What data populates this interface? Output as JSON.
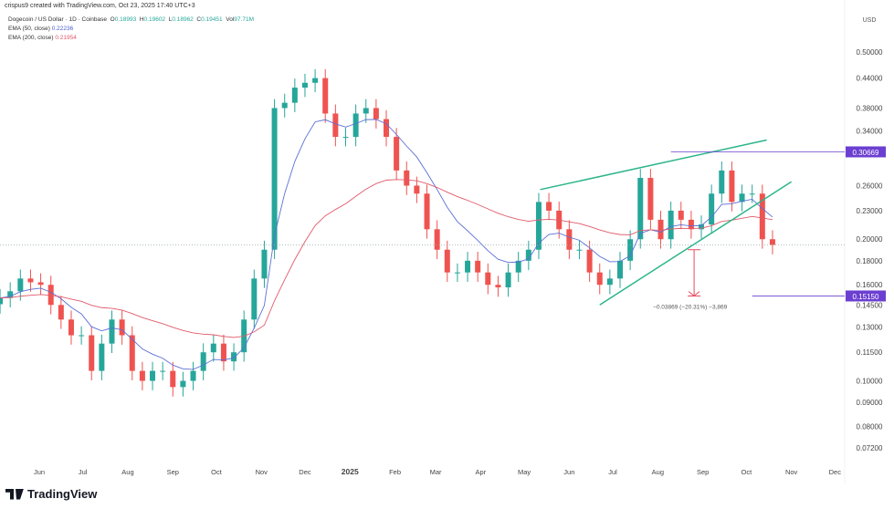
{
  "header": {
    "credit": "crispus9 created with TradingView.com, Oct 23, 2025 17:40 UTC+3",
    "symbol": "Dogecoin / US Dollar · 1D · Coinbase",
    "o_label": "O",
    "o": "0.18993",
    "h_label": "H",
    "h": "0.19602",
    "l_label": "L",
    "l": "0.18962",
    "c_label": "C",
    "c": "0.19451",
    "vol_label": "Vol",
    "vol": "97.71M",
    "ema50_label": "EMA (50, close)",
    "ema50": "0.22236",
    "ema200_label": "EMA (200, close)",
    "ema200": "0.21954"
  },
  "footer": {
    "brand": "TradingView"
  },
  "colors": {
    "up": "#26a69a",
    "down": "#ef5350",
    "ema50": "#5b6fd6",
    "ema200": "#e05a6a",
    "trend": "#2bb58a",
    "marker": "#6b3fd1",
    "arrow": "#e8485e"
  },
  "chart_data": {
    "type": "candlestick",
    "title": "Dogecoin / US Dollar · 1D · Coinbase",
    "yscale": "log",
    "ylabel": "USD",
    "ylim": [
      0.068,
      0.53
    ],
    "y_ticks": [
      "0.50000",
      "0.44000",
      "0.38000",
      "0.34000",
      "0.26000",
      "0.23000",
      "0.20000",
      "0.18000",
      "0.16000",
      "0.14500",
      "0.13000",
      "0.11500",
      "0.10000",
      "0.09000",
      "0.08000",
      "0.07200"
    ],
    "x_ticks": [
      {
        "label": "Jun",
        "date": "2024-06-01"
      },
      {
        "label": "Jul",
        "date": "2024-07-01"
      },
      {
        "label": "Aug",
        "date": "2024-08-01"
      },
      {
        "label": "Sep",
        "date": "2024-09-01"
      },
      {
        "label": "Oct",
        "date": "2024-10-01"
      },
      {
        "label": "Nov",
        "date": "2024-11-01"
      },
      {
        "label": "Dec",
        "date": "2024-12-01"
      },
      {
        "label": "2025",
        "date": "2025-01-01"
      },
      {
        "label": "Feb",
        "date": "2025-02-01"
      },
      {
        "label": "Mar",
        "date": "2025-03-01"
      },
      {
        "label": "Apr",
        "date": "2025-04-01"
      },
      {
        "label": "May",
        "date": "2025-05-01"
      },
      {
        "label": "Jun",
        "date": "2025-06-01"
      },
      {
        "label": "Jul",
        "date": "2025-07-01"
      },
      {
        "label": "Aug",
        "date": "2025-08-01"
      },
      {
        "label": "Sep",
        "date": "2025-09-01"
      },
      {
        "label": "Oct",
        "date": "2025-10-01"
      },
      {
        "label": "Nov",
        "date": "2025-11-01"
      },
      {
        "label": "Dec",
        "date": "2025-12-01"
      }
    ],
    "start_date": "2024-05-05",
    "step_days": 7,
    "closes": [
      0.15,
      0.155,
      0.165,
      0.162,
      0.16,
      0.145,
      0.135,
      0.125,
      0.125,
      0.105,
      0.12,
      0.135,
      0.125,
      0.105,
      0.1,
      0.105,
      0.105,
      0.097,
      0.1,
      0.105,
      0.115,
      0.12,
      0.11,
      0.115,
      0.135,
      0.165,
      0.19,
      0.38,
      0.39,
      0.42,
      0.43,
      0.44,
      0.37,
      0.33,
      0.33,
      0.37,
      0.38,
      0.36,
      0.33,
      0.28,
      0.26,
      0.25,
      0.21,
      0.19,
      0.17,
      0.17,
      0.18,
      0.17,
      0.16,
      0.158,
      0.17,
      0.18,
      0.19,
      0.24,
      0.23,
      0.21,
      0.19,
      0.19,
      0.17,
      0.16,
      0.165,
      0.18,
      0.2,
      0.27,
      0.22,
      0.2,
      0.23,
      0.22,
      0.21,
      0.215,
      0.25,
      0.28,
      0.24,
      0.25,
      0.25,
      0.2,
      0.19451
    ],
    "current_price": 0.19451,
    "price_labels": [
      {
        "value": "0.30669",
        "price": 0.30669,
        "from": "2025-08-10"
      },
      {
        "value": "0.15150",
        "price": 0.1515,
        "from": "2025-10-05"
      }
    ],
    "trendlines": [
      {
        "name": "upper-trendline",
        "from": [
          "2025-05-12",
          0.255
        ],
        "to": [
          "2025-10-15",
          0.325
        ]
      },
      {
        "name": "lower-trendline",
        "from": [
          "2025-06-22",
          0.145
        ],
        "to": [
          "2025-11-01",
          0.265
        ]
      }
    ],
    "measure": {
      "date": "2025-08-26",
      "from": 0.19,
      "to": 0.1515,
      "label": "−0.03869 (−20.31%) −3,869"
    }
  }
}
